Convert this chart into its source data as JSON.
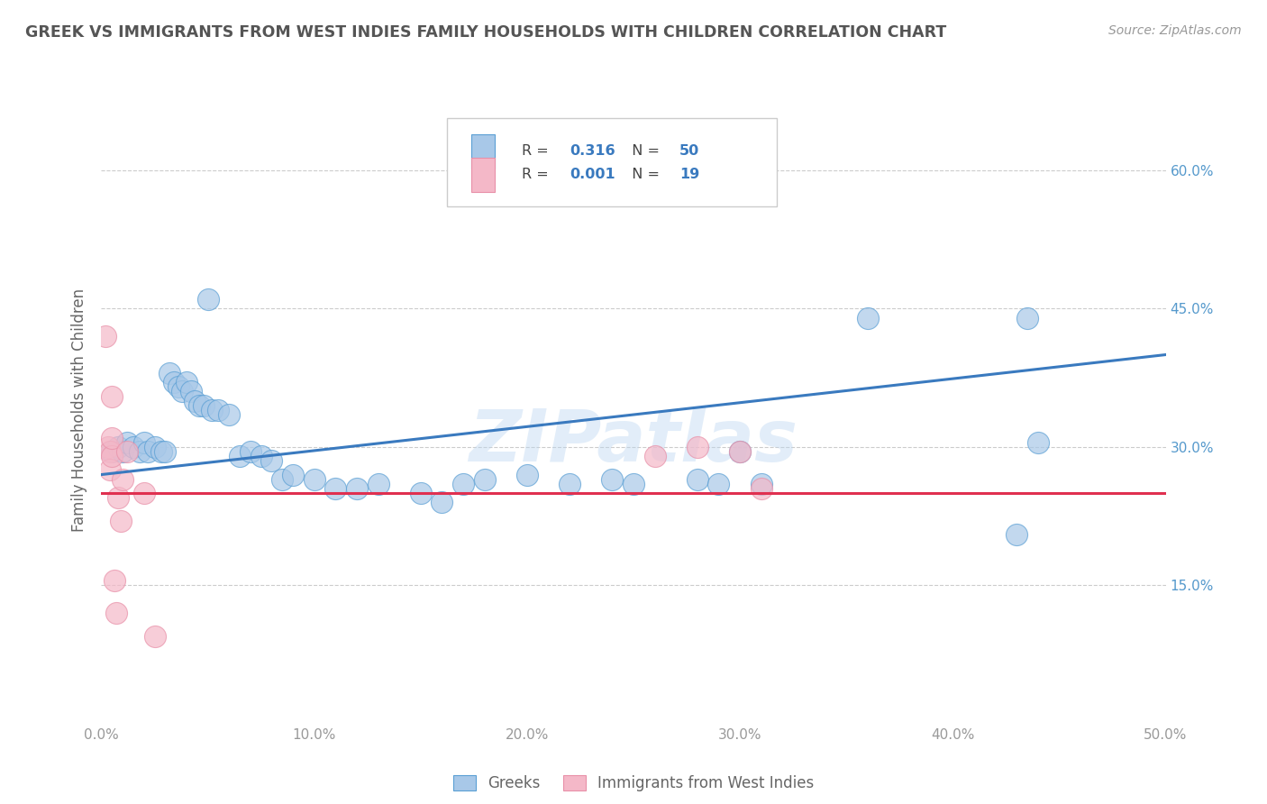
{
  "title": "GREEK VS IMMIGRANTS FROM WEST INDIES FAMILY HOUSEHOLDS WITH CHILDREN CORRELATION CHART",
  "source": "Source: ZipAtlas.com",
  "ylabel": "Family Households with Children",
  "xlim": [
    0.0,
    0.5
  ],
  "ylim": [
    0.0,
    0.68
  ],
  "yticks": [
    0.15,
    0.3,
    0.45,
    0.6
  ],
  "ytick_labels": [
    "15.0%",
    "30.0%",
    "45.0%",
    "60.0%"
  ],
  "xticks": [
    0.0,
    0.1,
    0.2,
    0.3,
    0.4,
    0.5
  ],
  "xtick_labels": [
    "0.0%",
    "10.0%",
    "20.0%",
    "30.0%",
    "40.0%",
    "50.0%"
  ],
  "blue_R": "0.316",
  "blue_N": "50",
  "pink_R": "0.001",
  "pink_N": "19",
  "blue_color": "#a8c8e8",
  "pink_color": "#f4b8c8",
  "blue_edge_color": "#5a9fd4",
  "pink_edge_color": "#e890a8",
  "blue_line_color": "#3a7abf",
  "pink_line_color": "#e03050",
  "legend_label_blue": "Greeks",
  "legend_label_pink": "Immigrants from West Indies",
  "watermark": "ZIPatlas",
  "blue_scatter_x": [
    0.005,
    0.008,
    0.01,
    0.012,
    0.015,
    0.018,
    0.02,
    0.022,
    0.025,
    0.028,
    0.03,
    0.032,
    0.034,
    0.036,
    0.038,
    0.04,
    0.042,
    0.044,
    0.046,
    0.048,
    0.05,
    0.052,
    0.055,
    0.06,
    0.065,
    0.07,
    0.075,
    0.08,
    0.085,
    0.09,
    0.1,
    0.11,
    0.12,
    0.13,
    0.15,
    0.16,
    0.17,
    0.18,
    0.2,
    0.22,
    0.24,
    0.25,
    0.28,
    0.29,
    0.3,
    0.31,
    0.36,
    0.43,
    0.435,
    0.44
  ],
  "blue_scatter_y": [
    0.295,
    0.3,
    0.295,
    0.305,
    0.3,
    0.295,
    0.305,
    0.295,
    0.3,
    0.295,
    0.295,
    0.38,
    0.37,
    0.365,
    0.36,
    0.37,
    0.36,
    0.35,
    0.345,
    0.345,
    0.46,
    0.34,
    0.34,
    0.335,
    0.29,
    0.295,
    0.29,
    0.285,
    0.265,
    0.27,
    0.265,
    0.255,
    0.255,
    0.26,
    0.25,
    0.24,
    0.26,
    0.265,
    0.27,
    0.26,
    0.265,
    0.26,
    0.265,
    0.26,
    0.295,
    0.26,
    0.44,
    0.205,
    0.44,
    0.305
  ],
  "pink_scatter_x": [
    0.002,
    0.003,
    0.004,
    0.004,
    0.005,
    0.005,
    0.005,
    0.006,
    0.007,
    0.008,
    0.009,
    0.01,
    0.012,
    0.02,
    0.025,
    0.26,
    0.28,
    0.3,
    0.31
  ],
  "pink_scatter_y": [
    0.42,
    0.3,
    0.295,
    0.275,
    0.29,
    0.31,
    0.355,
    0.155,
    0.12,
    0.245,
    0.22,
    0.265,
    0.295,
    0.25,
    0.095,
    0.29,
    0.3,
    0.295,
    0.255
  ],
  "blue_trend_x": [
    0.0,
    0.5
  ],
  "blue_trend_y": [
    0.27,
    0.4
  ],
  "pink_trend_x": [
    0.0,
    0.5
  ],
  "pink_trend_y": [
    0.25,
    0.25
  ],
  "background_color": "#ffffff",
  "grid_color": "#cccccc",
  "title_color": "#555555",
  "axis_label_color": "#666666",
  "tick_color": "#999999",
  "right_tick_color": "#5599cc"
}
